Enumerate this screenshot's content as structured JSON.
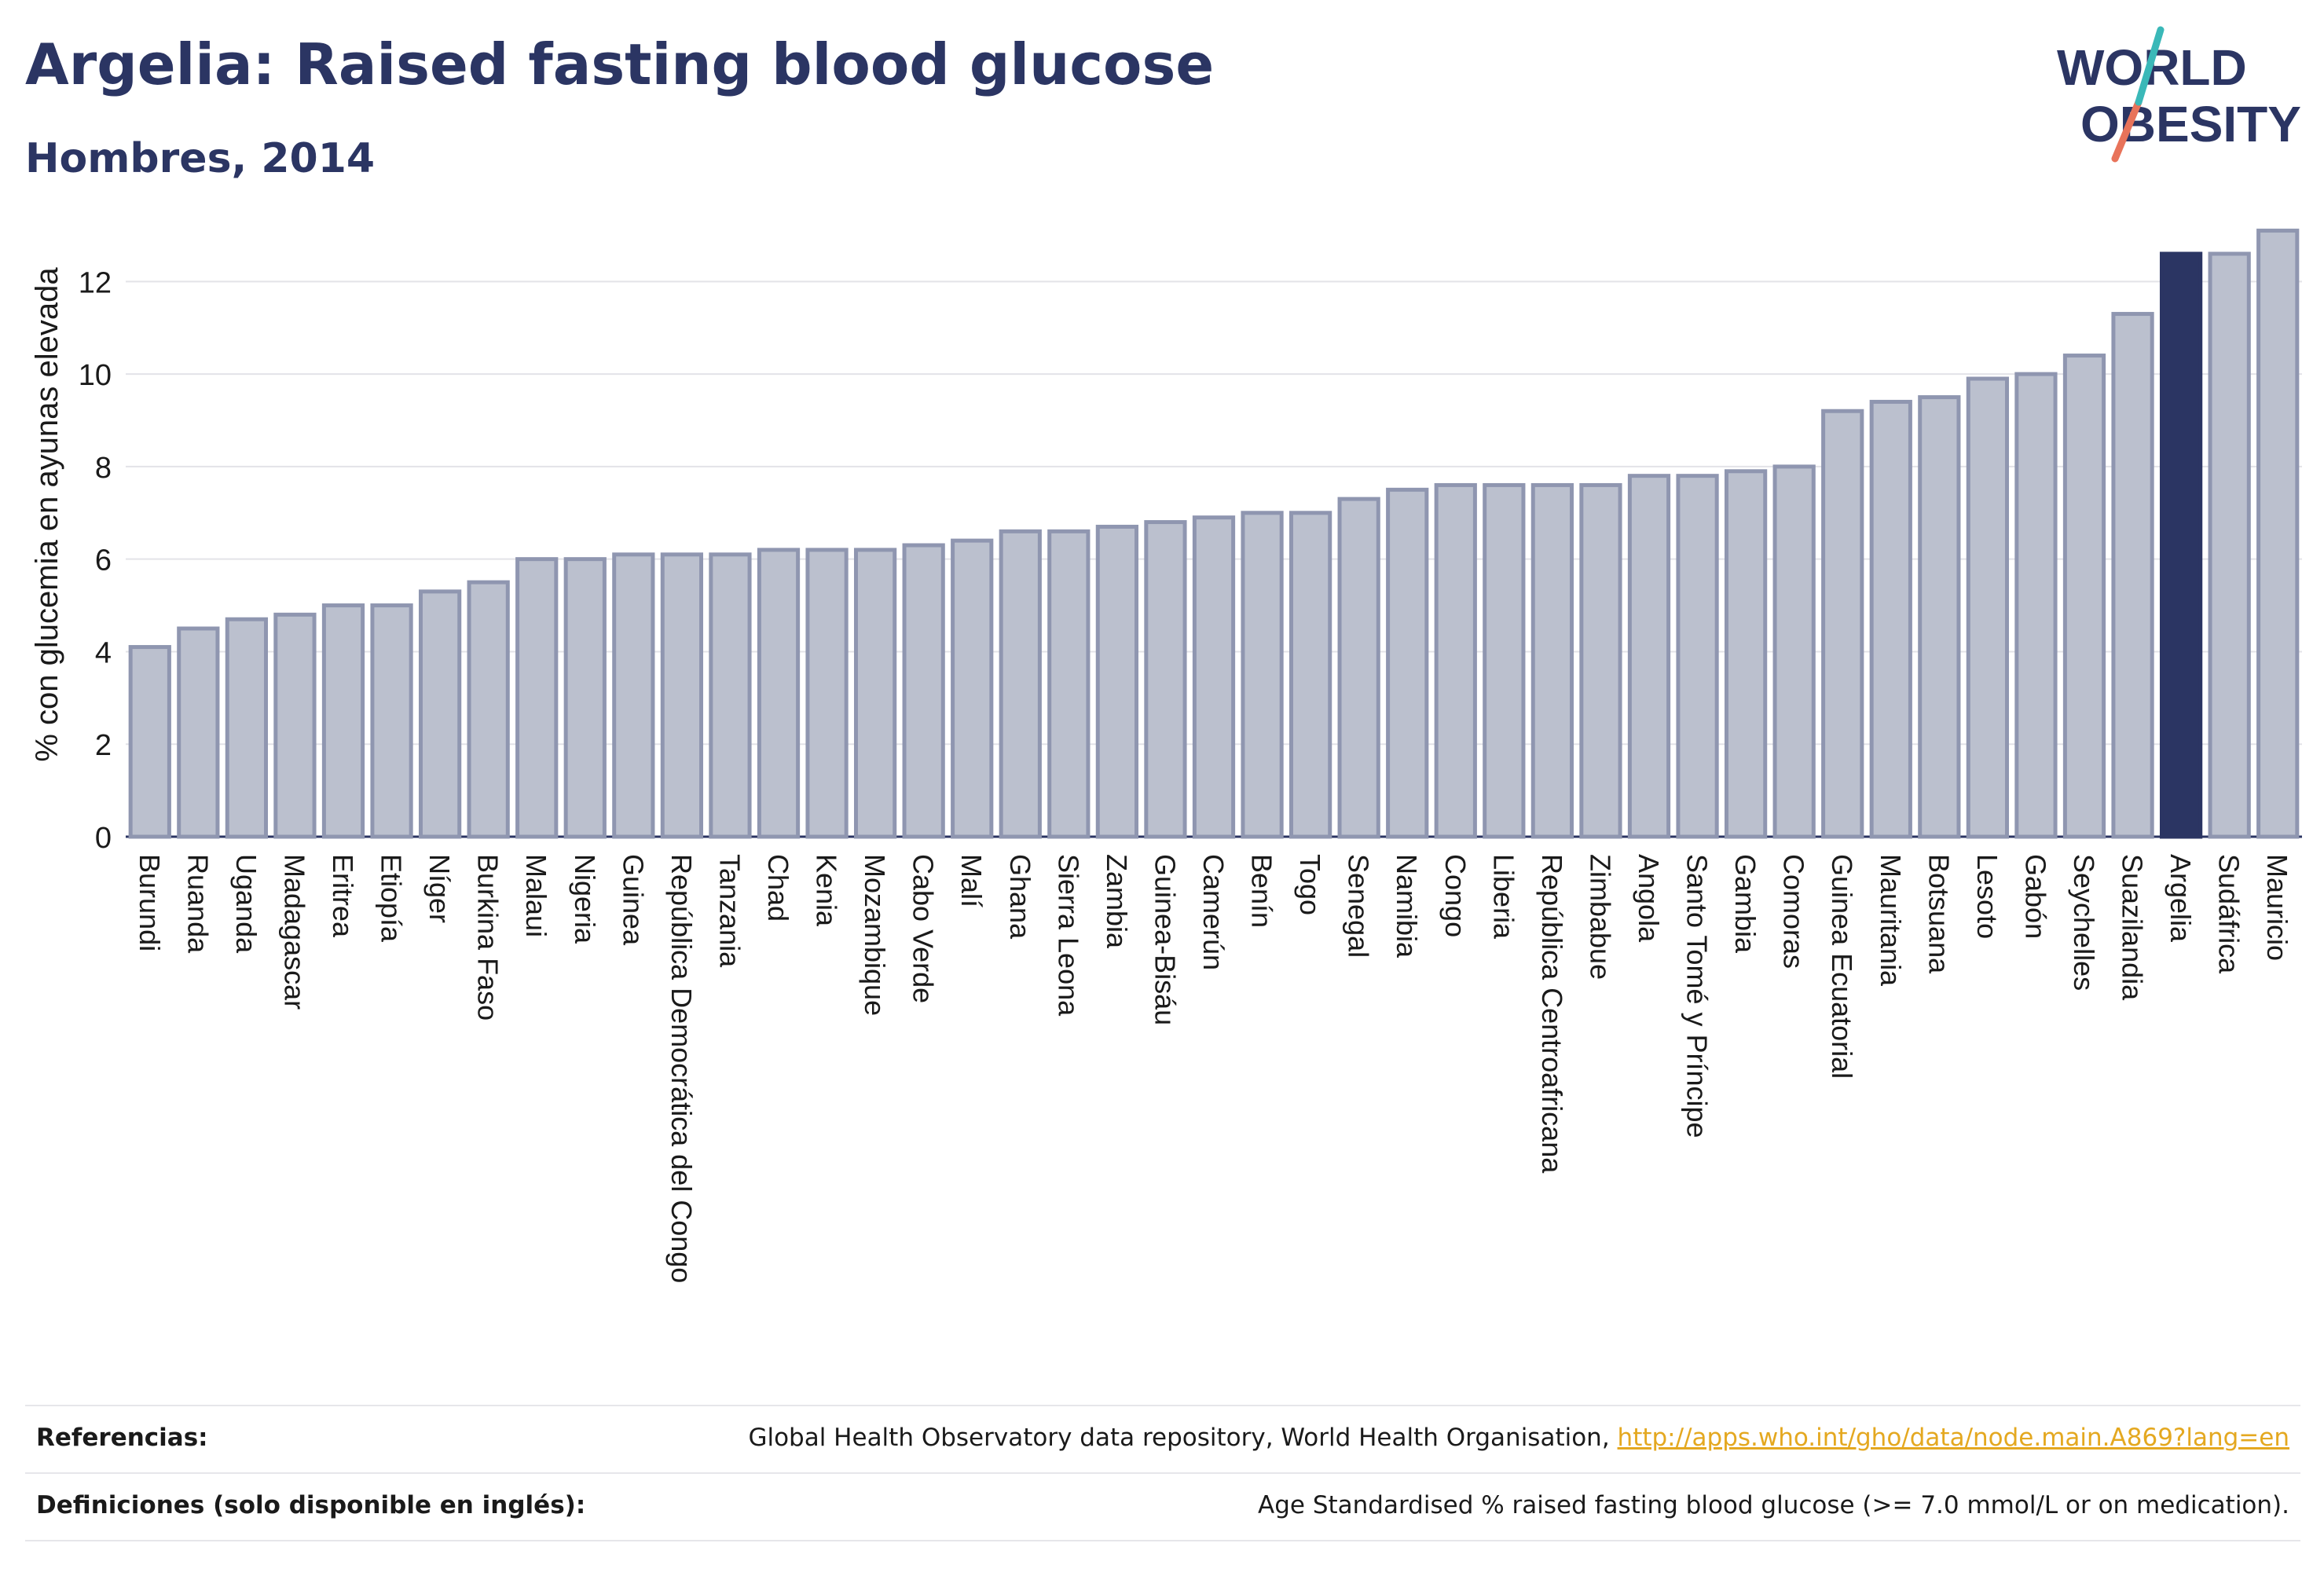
{
  "header": {
    "title": "Argelia: Raised fasting blood glucose",
    "subtitle": "Hombres, 2014"
  },
  "logo": {
    "line1": "WORLD",
    "line2": "OBESITY"
  },
  "colors": {
    "bar": "#bbc0ce",
    "bar_border": "#8f96b0",
    "highlight": "#2b3563",
    "grid": "#e3e3e8"
  },
  "chart_data": {
    "type": "bar",
    "ylabel": "% con glucemia en ayunas elevada",
    "ylim": [
      0,
      13.5
    ],
    "yticks": [
      0,
      2,
      4,
      6,
      8,
      10,
      12
    ],
    "highlight": "Argelia",
    "categories": [
      "Burundi",
      "Ruanda",
      "Uganda",
      "Madagascar",
      "Eritrea",
      "Etiopía",
      "Níger",
      "Burkina Faso",
      "Malaui",
      "Nigeria",
      "Guinea",
      "República Democrática del Congo",
      "Tanzania",
      "Chad",
      "Kenia",
      "Mozambique",
      "Cabo Verde",
      "Malí",
      "Ghana",
      "Sierra Leona",
      "Zambia",
      "Guinea-Bisáu",
      "Camerún",
      "Benín",
      "Togo",
      "Senegal",
      "Namibia",
      "Congo",
      "Liberia",
      "República Centroafricana",
      "Zimbabue",
      "Angola",
      "Santo Tomé y Príncipe",
      "Gambia",
      "Comoras",
      "Guinea Ecuatorial",
      "Mauritania",
      "Botsuana",
      "Lesoto",
      "Gabón",
      "Seychelles",
      "Suazilandia",
      "Argelia",
      "Sudáfrica",
      "Mauricio"
    ],
    "values": [
      4.1,
      4.5,
      4.7,
      4.8,
      5.0,
      5.0,
      5.3,
      5.5,
      6.0,
      6.0,
      6.1,
      6.1,
      6.1,
      6.2,
      6.2,
      6.2,
      6.3,
      6.4,
      6.6,
      6.6,
      6.7,
      6.8,
      6.9,
      7.0,
      7.0,
      7.3,
      7.5,
      7.6,
      7.6,
      7.6,
      7.6,
      7.8,
      7.8,
      7.9,
      8.0,
      9.2,
      9.4,
      9.5,
      9.9,
      10.0,
      10.4,
      11.3,
      12.6,
      12.6,
      13.1
    ]
  },
  "footer": {
    "ref_label": "Referencias:",
    "ref_text": "Global Health Observatory data repository, World Health Organisation, ",
    "ref_link": "http://apps.who.int/gho/data/node.main.A869?lang=en",
    "def_label": "Definiciones (solo disponible en inglés):",
    "def_text": "Age Standardised % raised fasting blood glucose (>= 7.0 mmol/L or on medication)."
  }
}
